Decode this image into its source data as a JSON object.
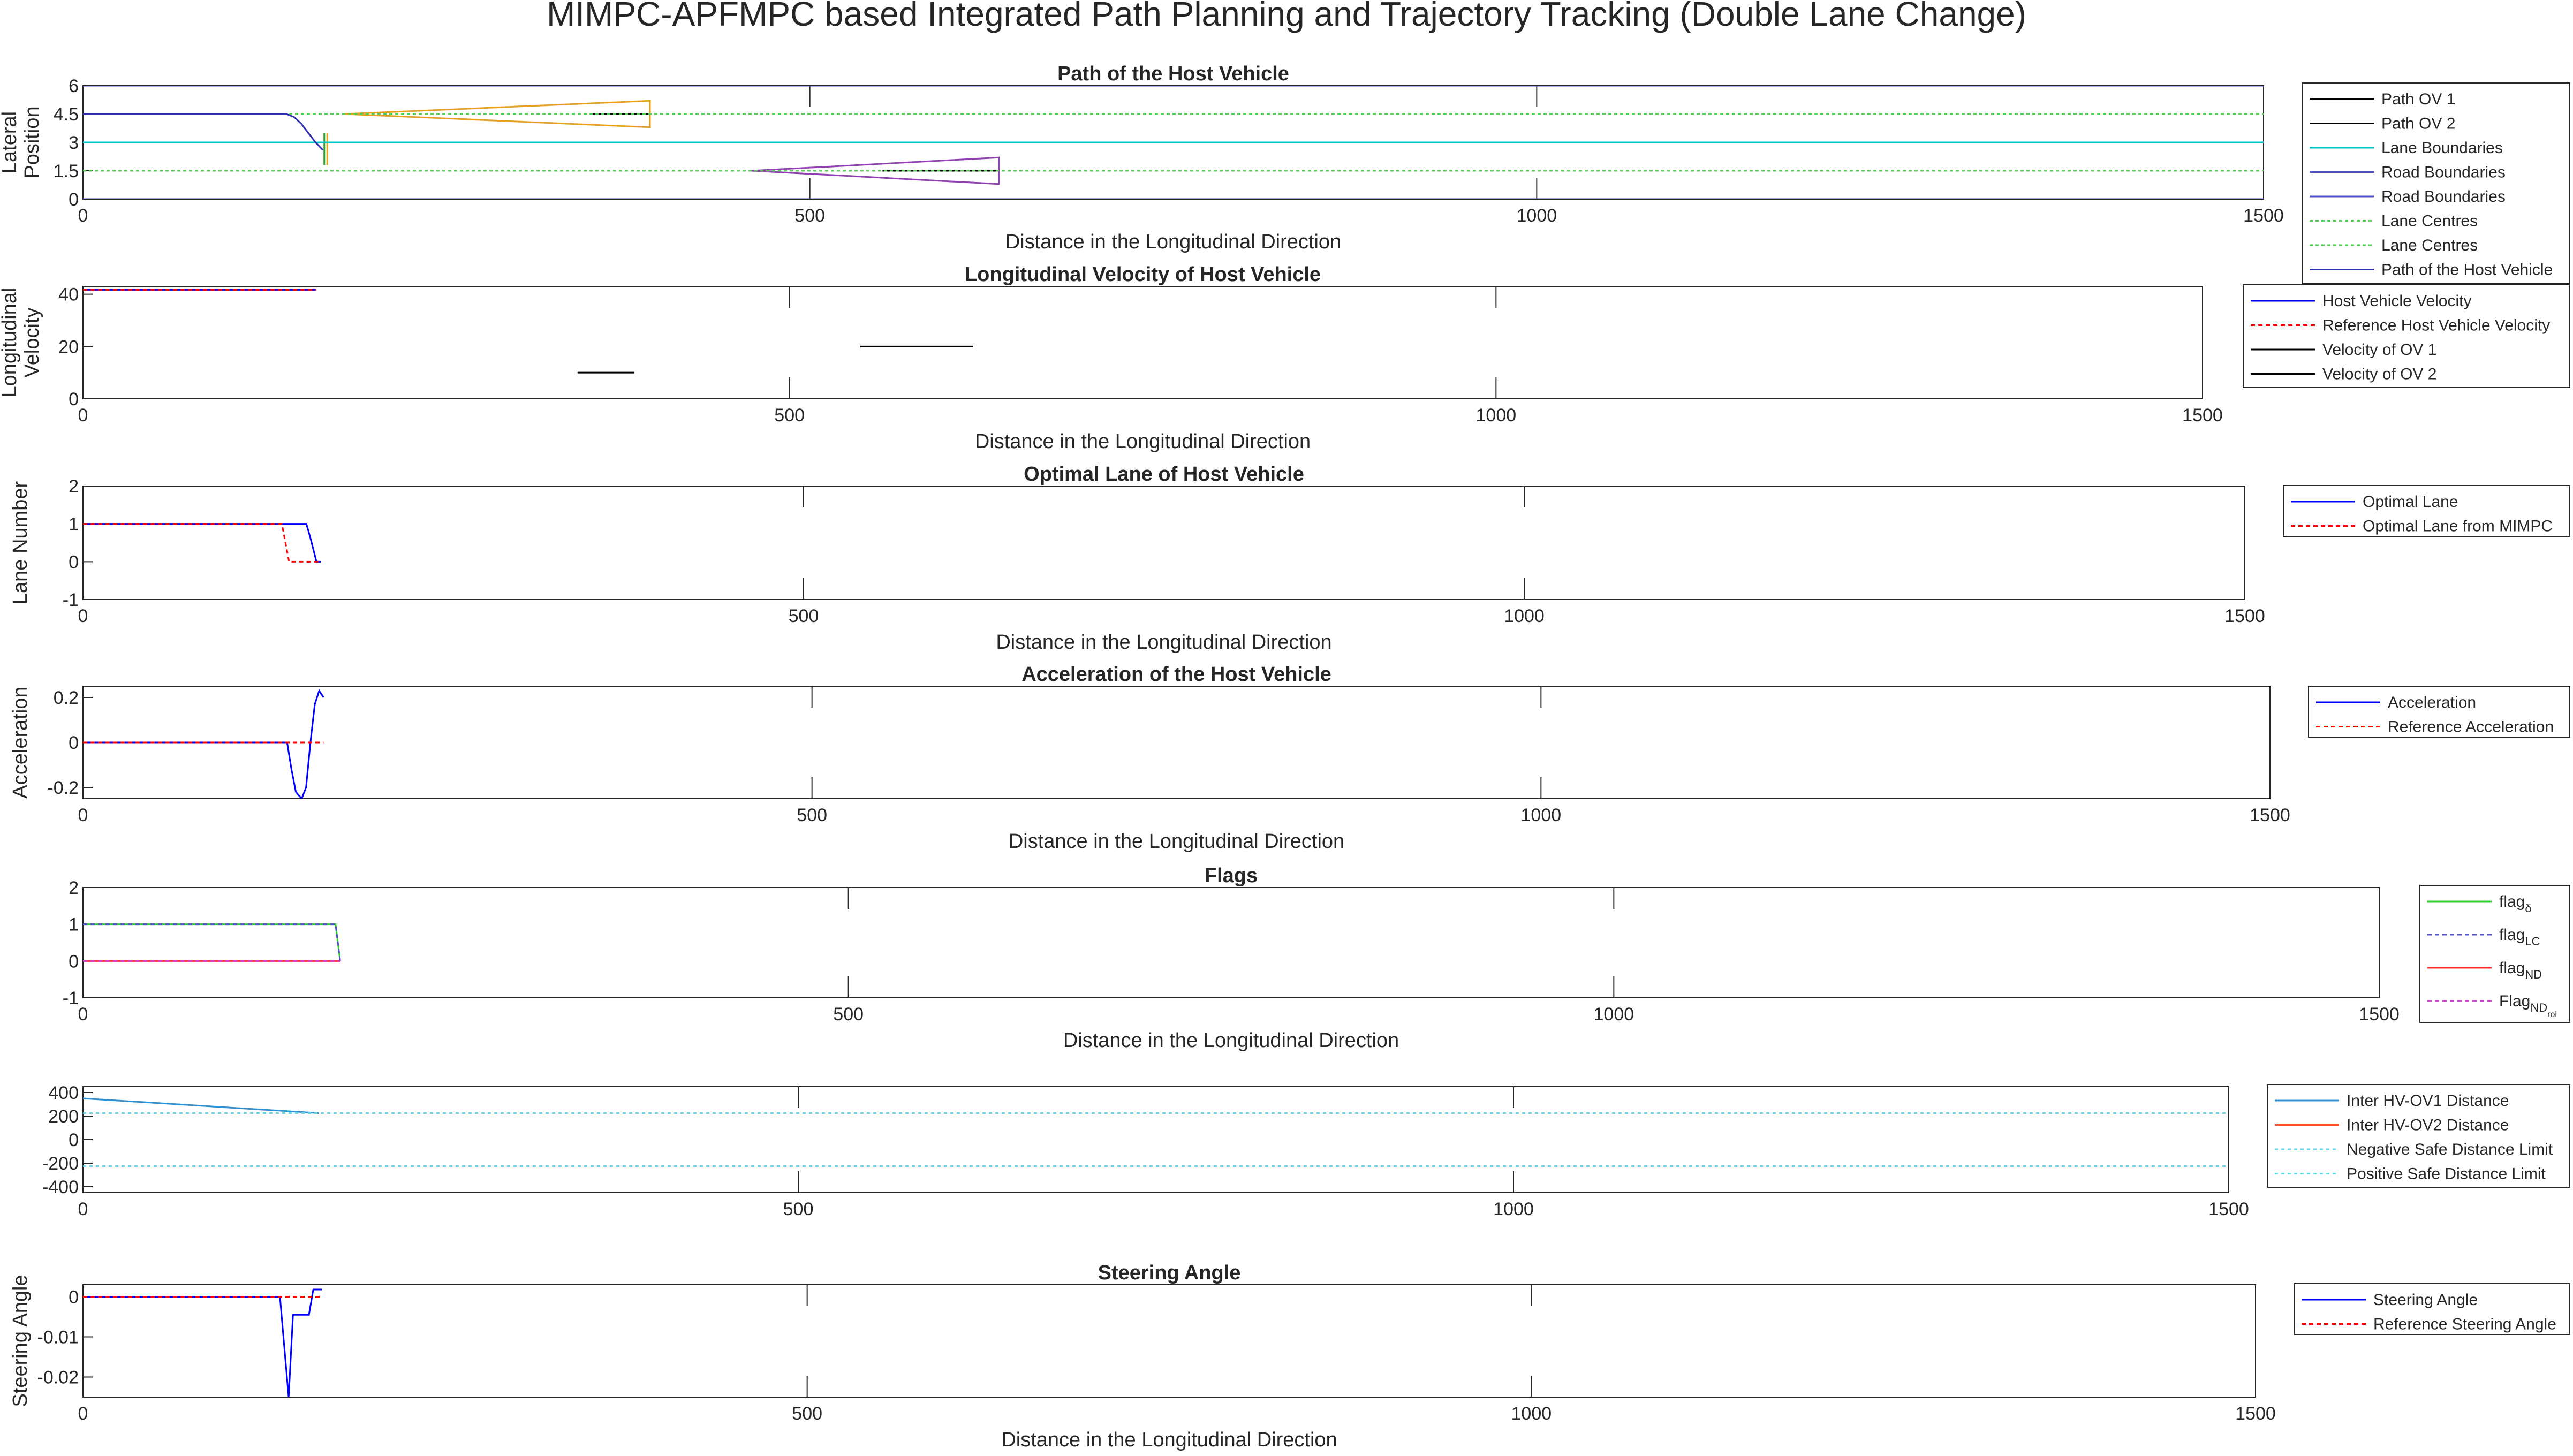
{
  "figure": {
    "title": "MIMPC-APFMPC based Integrated Path Planning and Trajectory Tracking (Double Lane Change)"
  },
  "chart_data": [
    {
      "id": "path",
      "type": "line",
      "title": "Path of the Host Vehicle",
      "xlabel": "Distance in the Longitudinal Direction",
      "ylabel": [
        "Lateral",
        "Position"
      ],
      "xlim": [
        0,
        1500
      ],
      "ylim": [
        0,
        6
      ],
      "xticks": [
        0,
        500,
        1000,
        1500
      ],
      "yticks": [
        0,
        1.5,
        3,
        4.5,
        6
      ],
      "ytick_labels": [
        "0",
        "1.5",
        "3",
        "4.5",
        "6"
      ],
      "series": [
        {
          "name": "Path OV 1",
          "color": "#000000",
          "dash": "",
          "x": [
            350,
            390
          ],
          "y": [
            4.5,
            4.5
          ]
        },
        {
          "name": "Path OV 2",
          "color": "#000000",
          "dash": "",
          "x": [
            550,
            630
          ],
          "y": [
            1.5,
            1.5
          ]
        },
        {
          "name": "Lane Boundaries",
          "color": "#00c8c8",
          "dash": "",
          "x": [
            0,
            1500
          ],
          "y": [
            3,
            3
          ]
        },
        {
          "name": "Road Boundaries",
          "color": "#5050c8",
          "dash": "",
          "x": [
            0,
            1500
          ],
          "y": [
            0,
            0
          ]
        },
        {
          "name": "Road Boundaries",
          "color": "#5050c8",
          "dash": "",
          "x": [
            0,
            1500
          ],
          "y": [
            6,
            6
          ]
        },
        {
          "name": "Lane Centres",
          "color": "#50d050",
          "dash": "6,5",
          "x": [
            0,
            1500
          ],
          "y": [
            4.5,
            4.5
          ]
        },
        {
          "name": "Lane Centres",
          "color": "#50d050",
          "dash": "6,5",
          "x": [
            0,
            1500
          ],
          "y": [
            1.5,
            1.5
          ]
        },
        {
          "name": "Path of the Host Vehicle",
          "color": "#3030b0",
          "dash": "",
          "x": [
            0,
            140,
            145,
            150,
            155,
            160,
            165
          ],
          "y": [
            4.5,
            4.5,
            4.35,
            4.0,
            3.5,
            3.0,
            2.6
          ]
        }
      ],
      "extras": [
        {
          "color": "#e6a020",
          "x": [
            180,
            390,
            390,
            180
          ],
          "y": [
            4.5,
            5.2,
            3.8,
            4.5
          ]
        },
        {
          "color": "#9040b0",
          "x": [
            460,
            630,
            630,
            460
          ],
          "y": [
            1.5,
            2.2,
            0.8,
            1.5
          ]
        },
        {
          "color": "#30a030",
          "x": [
            166,
            166
          ],
          "y": [
            1.8,
            3.5
          ]
        },
        {
          "color": "#e6a020",
          "x": [
            168,
            168
          ],
          "y": [
            1.8,
            3.5
          ]
        }
      ]
    },
    {
      "id": "velocity",
      "type": "line",
      "title": "Longitudinal Velocity of Host Vehicle",
      "xlabel": "Distance in the Longitudinal Direction",
      "ylabel": [
        "Longitudinal",
        "Velocity"
      ],
      "xlim": [
        0,
        1500
      ],
      "ylim": [
        0,
        43
      ],
      "xticks": [
        0,
        500,
        1000,
        1500
      ],
      "yticks": [
        0,
        20,
        40
      ],
      "series": [
        {
          "name": "Host Vehicle Velocity",
          "color": "#0000ff",
          "dash": "",
          "x": [
            0,
            165
          ],
          "y": [
            41.7,
            41.7
          ]
        },
        {
          "name": "Reference Host Vehicle Velocity",
          "color": "#ff0000",
          "dash": "8,6",
          "x": [
            0,
            165
          ],
          "y": [
            41.7,
            41.7
          ]
        },
        {
          "name": "Velocity of OV 1",
          "color": "#000000",
          "dash": "",
          "x": [
            350,
            390
          ],
          "y": [
            10,
            10
          ]
        },
        {
          "name": "Velocity of OV 2",
          "color": "#000000",
          "dash": "",
          "x": [
            550,
            630
          ],
          "y": [
            20,
            20
          ]
        }
      ]
    },
    {
      "id": "lane",
      "type": "line",
      "title": "Optimal Lane of Host Vehicle",
      "xlabel": "Distance in the Longitudinal Direction",
      "ylabel": [
        "Lane Number"
      ],
      "xlim": [
        0,
        1500
      ],
      "ylim": [
        -1,
        2
      ],
      "xticks": [
        0,
        500,
        1000,
        1500
      ],
      "yticks": [
        -1,
        0,
        1,
        2
      ],
      "series": [
        {
          "name": "Optimal Lane",
          "color": "#0000ff",
          "dash": "",
          "x": [
            0,
            155,
            158,
            162,
            165
          ],
          "y": [
            1,
            1,
            0.6,
            0,
            0
          ]
        },
        {
          "name": "Optimal Lane from MIMPC",
          "color": "#ff0000",
          "dash": "8,6",
          "x": [
            0,
            138,
            143,
            165
          ],
          "y": [
            1,
            1,
            0,
            0
          ]
        }
      ]
    },
    {
      "id": "accel",
      "type": "line",
      "title": "Acceleration of the Host Vehicle",
      "xlabel": "Distance in the Longitudinal Direction",
      "ylabel": [
        "Acceleration"
      ],
      "xlim": [
        0,
        1500
      ],
      "ylim": [
        -0.25,
        0.25
      ],
      "xticks": [
        0,
        500,
        1000,
        1500
      ],
      "yticks": [
        -0.2,
        0,
        0.2
      ],
      "series": [
        {
          "name": "Acceleration",
          "color": "#0000ff",
          "dash": "",
          "x": [
            0,
            140,
            143,
            146,
            150,
            153,
            156,
            159,
            162,
            165
          ],
          "y": [
            0,
            0,
            -0.12,
            -0.22,
            -0.25,
            -0.2,
            0.0,
            0.17,
            0.23,
            0.2
          ]
        },
        {
          "name": "Reference Acceleration",
          "color": "#ff0000",
          "dash": "8,6",
          "x": [
            0,
            165
          ],
          "y": [
            0,
            0
          ]
        }
      ]
    },
    {
      "id": "flags",
      "type": "line",
      "title": "Flags",
      "xlabel": "Distance in the Longitudinal Direction",
      "ylabel": [],
      "xlim": [
        0,
        1500
      ],
      "ylim": [
        -1,
        2
      ],
      "xticks": [
        0,
        500,
        1000,
        1500
      ],
      "yticks": [
        -1,
        0,
        1,
        2
      ],
      "series": [
        {
          "name": "flag",
          "sub": "δ",
          "color": "#30d030",
          "dash": "",
          "x": [
            0,
            165,
            168
          ],
          "y": [
            1,
            1,
            0
          ]
        },
        {
          "name": "flag",
          "sub": "LC",
          "color": "#5050c8",
          "dash": "8,6",
          "x": [
            0,
            165,
            168
          ],
          "y": [
            1,
            1,
            0
          ]
        },
        {
          "name": "flag",
          "sub": "ND",
          "color": "#ff3030",
          "dash": "",
          "x": [
            0,
            168
          ],
          "y": [
            0,
            0
          ]
        },
        {
          "name": "Flag",
          "sub": "ND",
          "sub2": "roi",
          "color": "#d040d0",
          "dash": "8,6",
          "x": [
            0,
            168
          ],
          "y": [
            0,
            0
          ]
        }
      ]
    },
    {
      "id": "dist",
      "type": "line",
      "title": "",
      "xlabel": "",
      "ylabel": [],
      "xlim": [
        0,
        1500
      ],
      "ylim": [
        -450,
        450
      ],
      "xticks": [
        0,
        500,
        1000,
        1500
      ],
      "yticks": [
        -400,
        -200,
        0,
        200,
        400
      ],
      "series": [
        {
          "name": "Inter HV-OV1 Distance",
          "color": "#3090d0",
          "dash": "",
          "x": [
            0,
            165
          ],
          "y": [
            350,
            225
          ]
        },
        {
          "name": "Inter HV-OV2 Distance",
          "color": "#ff5030",
          "dash": "",
          "x": [],
          "y": []
        },
        {
          "name": "Negative Safe Distance Limit",
          "color": "#60d8e8",
          "dash": "6,6",
          "x": [
            0,
            1500
          ],
          "y": [
            -225,
            -225
          ]
        },
        {
          "name": "Positive Safe Distance Limit",
          "color": "#60d8e8",
          "dash": "6,6",
          "x": [
            0,
            1500
          ],
          "y": [
            225,
            225
          ]
        }
      ]
    },
    {
      "id": "steer",
      "type": "line",
      "title": "Steering Angle",
      "xlabel": "Distance in the Longitudinal Direction",
      "ylabel": [
        "Steering Angle"
      ],
      "xlim": [
        0,
        1500
      ],
      "ylim": [
        -0.025,
        0.003
      ],
      "xticks": [
        0,
        500,
        1000,
        1500
      ],
      "yticks": [
        -0.02,
        -0.01,
        0
      ],
      "series": [
        {
          "name": "Steering Angle",
          "color": "#0000ff",
          "dash": "",
          "x": [
            0,
            136,
            142,
            145,
            150,
            153,
            156,
            159,
            161,
            165
          ],
          "y": [
            0,
            0,
            -0.025,
            -0.0045,
            -0.0045,
            -0.0045,
            -0.0045,
            0.0018,
            0.0018,
            0.0018
          ]
        },
        {
          "name": "Reference Steering Angle",
          "color": "#ff0000",
          "dash": "8,6",
          "x": [
            0,
            165
          ],
          "y": [
            0,
            0
          ]
        }
      ]
    }
  ]
}
